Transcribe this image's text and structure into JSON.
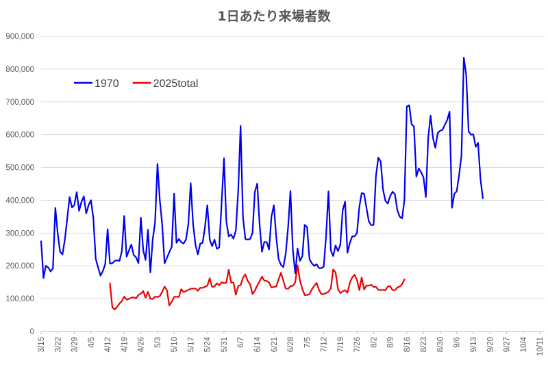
{
  "chart_data": {
    "type": "line",
    "title": "1日あたり来場者数",
    "xlabel": "",
    "ylabel": "",
    "ylim": [
      0,
      900000
    ],
    "yticks": [
      0,
      100000,
      200000,
      300000,
      400000,
      500000,
      600000,
      700000,
      800000,
      900000
    ],
    "ytick_labels": [
      "0",
      "100,000",
      "200,000",
      "300,000",
      "400,000",
      "500,000",
      "600,000",
      "700,000",
      "800,000",
      "900,000"
    ],
    "x_start": "3/15",
    "x_end": "10/13",
    "xtick_labels": [
      "3/15",
      "3/22",
      "3/29",
      "4/5",
      "4/12",
      "4/19",
      "4/26",
      "5/3",
      "5/10",
      "5/17",
      "5/24",
      "5/31",
      "6/7",
      "6/14",
      "6/21",
      "6/28",
      "7/5",
      "7/12",
      "7/19",
      "7/26",
      "8/2",
      "8/9",
      "8/16",
      "8/23",
      "8/30",
      "9/6",
      "9/13",
      "9/20",
      "9/27",
      "10/4",
      "10/11"
    ],
    "grid": "horizontal",
    "legend_position": "top-left",
    "series": [
      {
        "name": "1970",
        "color": "#0000ee",
        "start": "3/15",
        "values": [
          275000,
          163000,
          200000,
          195000,
          183000,
          193000,
          377000,
          298000,
          243000,
          235000,
          280000,
          344000,
          410000,
          378000,
          385000,
          425000,
          368000,
          395000,
          412000,
          360000,
          385000,
          400000,
          345000,
          222000,
          195000,
          170000,
          184000,
          205000,
          312000,
          207000,
          208000,
          215000,
          217000,
          215000,
          245000,
          352000,
          228000,
          247000,
          265000,
          233000,
          226000,
          208000,
          347000,
          248000,
          218000,
          310000,
          180000,
          280000,
          333000,
          511000,
          400000,
          325000,
          208000,
          225000,
          242000,
          258000,
          420000,
          270000,
          282000,
          272000,
          268000,
          280000,
          328000,
          452000,
          327000,
          264000,
          235000,
          268000,
          270000,
          318000,
          385000,
          280000,
          260000,
          280000,
          252000,
          256000,
          392000,
          528000,
          336000,
          290000,
          295000,
          283000,
          308000,
          430000,
          627000,
          348000,
          282000,
          280000,
          282000,
          300000,
          425000,
          451000,
          325000,
          243000,
          273000,
          272000,
          250000,
          350000,
          385000,
          290000,
          220000,
          203000,
          196000,
          237000,
          318000,
          428000,
          250000,
          177000,
          253000,
          215000,
          230000,
          325000,
          318000,
          220000,
          208000,
          200000,
          205000,
          193000,
          193000,
          198000,
          290000,
          427000,
          247000,
          230000,
          262000,
          245000,
          265000,
          370000,
          396000,
          240000,
          270000,
          290000,
          290000,
          300000,
          380000,
          422000,
          420000,
          377000,
          336000,
          324000,
          325000,
          474000,
          530000,
          518000,
          432000,
          398000,
          390000,
          413000,
          426000,
          418000,
          370000,
          350000,
          345000,
          401000,
          686000,
          690000,
          632000,
          625000,
          472000,
          497000,
          486000,
          470000,
          410000,
          590000,
          658000,
          590000,
          560000,
          605000,
          612000,
          615000,
          630000,
          645000,
          670000,
          377000,
          420000,
          427000,
          477000,
          537000,
          835000,
          783000,
          610000,
          600000,
          601000,
          563000,
          575000,
          465000,
          406000
        ]
      },
      {
        "name": "2025total",
        "color": "#ee0000",
        "start": "4/13",
        "values": [
          147000,
          73000,
          67000,
          75000,
          85000,
          93000,
          106000,
          97000,
          99000,
          103000,
          104000,
          101000,
          111000,
          115000,
          123000,
          103000,
          121000,
          100000,
          99000,
          106000,
          105000,
          108000,
          121000,
          137000,
          125000,
          79000,
          91000,
          105000,
          106000,
          105000,
          129000,
          120000,
          123000,
          127000,
          130000,
          131000,
          131000,
          124000,
          133000,
          133000,
          136000,
          140000,
          162000,
          136000,
          137000,
          147000,
          141000,
          150000,
          147000,
          149000,
          188000,
          149000,
          149000,
          112000,
          139000,
          141000,
          164000,
          174000,
          154000,
          144000,
          114000,
          124000,
          140000,
          153000,
          167000,
          155000,
          154000,
          149000,
          134000,
          136000,
          137000,
          159000,
          179000,
          155000,
          131000,
          130000,
          138000,
          139000,
          150000,
          202000,
          155000,
          129000,
          111000,
          111000,
          114000,
          128000,
          139000,
          148000,
          127000,
          114000,
          114000,
          117000,
          121000,
          132000,
          189000,
          180000,
          130000,
          117000,
          122000,
          126000,
          118000,
          148000,
          165000,
          173000,
          157000,
          126000,
          165000,
          128000,
          140000,
          140000,
          142000,
          136000,
          136000,
          127000,
          126000,
          127000,
          125000,
          137000,
          138000,
          126000,
          126000,
          134000,
          137000,
          144000,
          159000
        ]
      }
    ]
  }
}
